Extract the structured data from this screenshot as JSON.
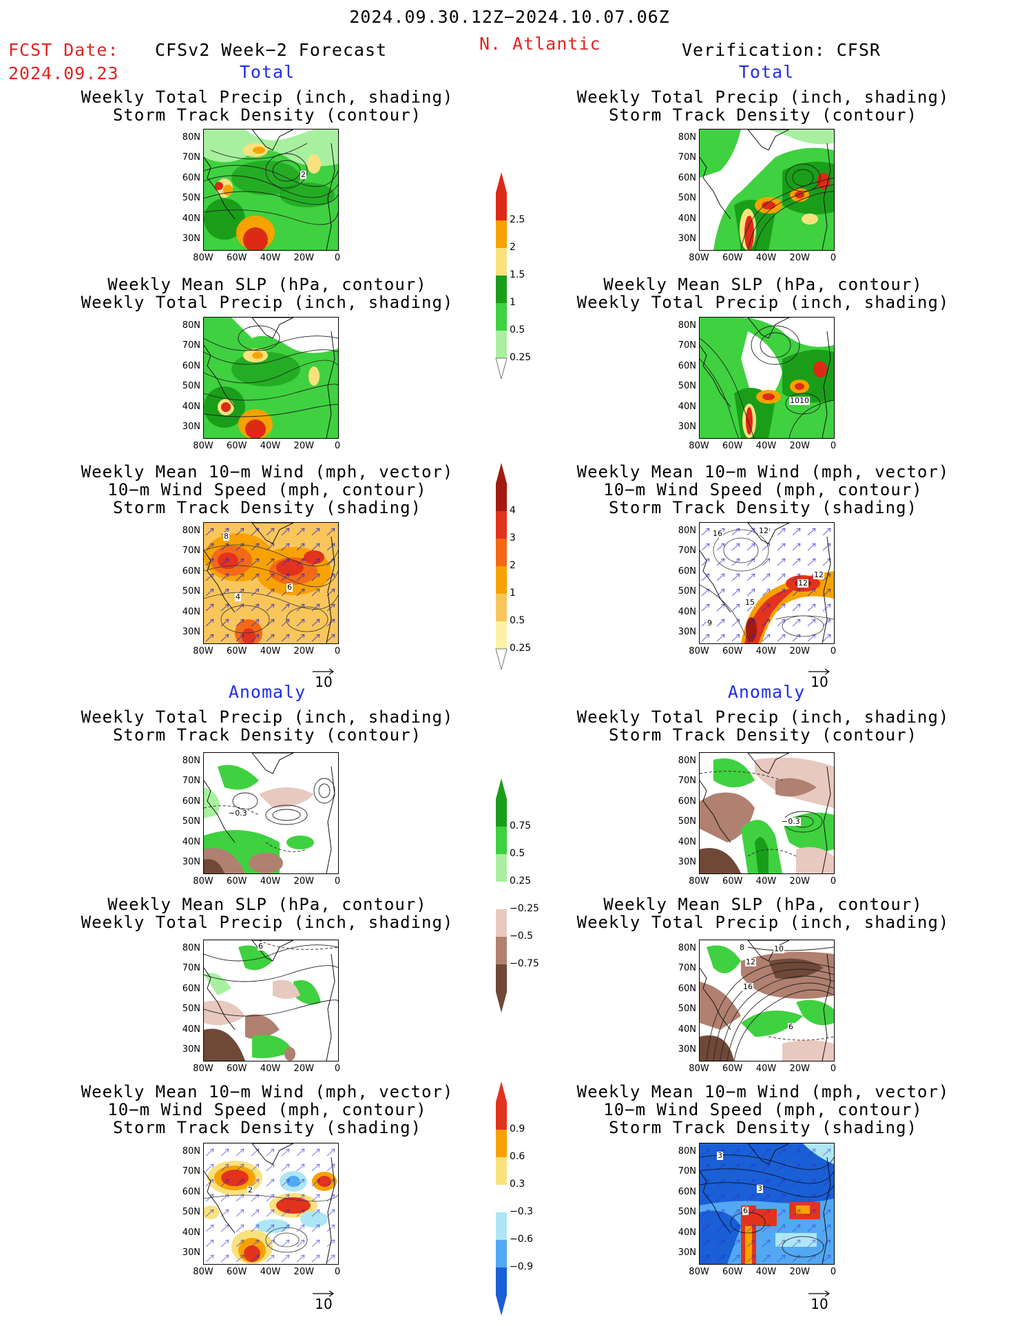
{
  "header": {
    "period": "2024.09.30.12Z−2024.10.07.06Z",
    "fcst_label": "FCST Date:",
    "fcst_date": "2024.09.23",
    "model": "CFSv2 Week−2 Forecast",
    "region": "N. Atlantic",
    "verification": "Verification: CFSR"
  },
  "sections": {
    "total": "Total",
    "anomaly": "Anomaly"
  },
  "titles": {
    "precip_track": [
      "Weekly Total Precip (inch, shading)",
      "Storm Track Density (contour)"
    ],
    "slp_precip": [
      "Weekly Mean SLP (hPa, contour)",
      "Weekly Total Precip (inch, shading)"
    ],
    "wind_track": [
      "Weekly Mean 10−m Wind (mph, vector)",
      "10−m Wind Speed (mph, contour)",
      "Storm Track Density (shading)"
    ]
  },
  "axes": {
    "lat": [
      "80N",
      "70N",
      "60N",
      "50N",
      "40N",
      "30N"
    ],
    "lon": [
      "80W",
      "60W",
      "40W",
      "20W",
      "0"
    ]
  },
  "vector_ref": "10",
  "colorbars": {
    "precip_total": {
      "labels": [
        "2.5",
        "2",
        "1.5",
        "1",
        "0.5",
        "0.25"
      ],
      "colors": [
        "#dd2a16",
        "#f7a200",
        "#f9e27e",
        "#1a9e1a",
        "#3fd13f",
        "#a8f0a0"
      ]
    },
    "track_total": {
      "labels": [
        "4",
        "3",
        "2",
        "1",
        "0.5",
        "0.25"
      ],
      "colors": [
        "#a31a10",
        "#e2331d",
        "#f26a17",
        "#f7a200",
        "#f9c65b",
        "#fbf3a3"
      ]
    },
    "precip_anom": {
      "labels": [
        "0.75",
        "0.5",
        "0.25",
        "−0.25",
        "−0.5",
        "−0.75"
      ],
      "colors": [
        "#1a9e1a",
        "#3fd13f",
        "#a8f0a0",
        "#ffffff",
        "#e8c9bf",
        "#b08070",
        "#704838"
      ]
    },
    "track_anom": {
      "labels": [
        "0.9",
        "0.6",
        "0.3",
        "−0.3",
        "−0.6",
        "−0.9"
      ],
      "colors": [
        "#e2331d",
        "#f7a200",
        "#f9e27e",
        "#ffffff",
        "#aee6f5",
        "#52a8f2",
        "#1a5fd6"
      ]
    }
  },
  "contour_labels": {
    "p1_left": "2",
    "p2_right": "1010",
    "p3_left_a": "8",
    "p3_left_b": "6",
    "p3_left_c": "4",
    "p3_right_a": "16",
    "p3_right_b": "12",
    "p3_right_c": "12",
    "p3_right_d": "12",
    "p3_right_e": "15",
    "p3_right_f": "9",
    "p4_left": "−0.3",
    "p4_right": "−0.3",
    "p5_left": "6",
    "p5_right_a": "8",
    "p5_right_b": "10",
    "p5_right_c": "12",
    "p5_right_d": "16",
    "p5_right_e": "6",
    "p6_left": "2",
    "p6_right_a": "3",
    "p6_right_b": "3",
    "p6_right_c": "6"
  }
}
